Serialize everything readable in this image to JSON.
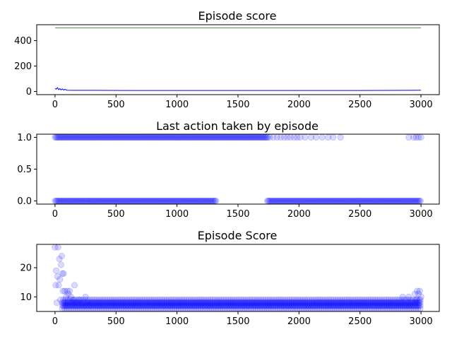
{
  "chart_data": [
    {
      "type": "line",
      "title": "Episode score",
      "xlim": [
        -150,
        3150
      ],
      "ylim": [
        -25,
        525
      ],
      "xticks": [
        0,
        500,
        1000,
        1500,
        2000,
        2500,
        3000
      ],
      "yticks": [
        0,
        200,
        400
      ],
      "series": [
        {
          "color": "#0000ff",
          "points": [
            [
              0,
              25
            ],
            [
              10,
              18
            ],
            [
              20,
              30
            ],
            [
              30,
              14
            ],
            [
              40,
              22
            ],
            [
              50,
              12
            ],
            [
              60,
              20
            ],
            [
              70,
              11
            ],
            [
              80,
              16
            ],
            [
              100,
              10
            ],
            [
              150,
              9
            ],
            [
              300,
              9
            ],
            [
              600,
              8
            ],
            [
              1000,
              8
            ],
            [
              1500,
              8
            ],
            [
              2000,
              8
            ],
            [
              2500,
              8
            ],
            [
              2900,
              9
            ],
            [
              3000,
              10
            ]
          ]
        },
        {
          "color": "#008000",
          "points": [
            [
              0,
              500
            ],
            [
              3000,
              500
            ]
          ]
        }
      ]
    },
    {
      "type": "scatter",
      "title": "Last action taken by episode",
      "xlim": [
        -150,
        3150
      ],
      "ylim": [
        -0.05,
        1.05
      ],
      "xticks": [
        0,
        500,
        1000,
        1500,
        2000,
        2500,
        3000
      ],
      "yticks": [
        0.0,
        0.5,
        1.0
      ],
      "ytick_labels": [
        "0.0",
        "0.5",
        "1.0"
      ],
      "color": "#0000ff",
      "alpha": 0.15,
      "series": [
        {
          "y": 1,
          "ranges": [
            [
              0,
              1750
            ]
          ],
          "step": 8,
          "extra": [
            1760,
            1790,
            1820,
            1850,
            1880,
            1905,
            1930,
            1960,
            1985,
            2010,
            2050,
            2100,
            2140,
            2190,
            2240,
            2280,
            2340,
            2900,
            2940,
            2960,
            2980,
            3000
          ]
        },
        {
          "y": 0,
          "ranges": [
            [
              0,
              1320
            ],
            [
              1740,
              3000
            ]
          ],
          "step": 8,
          "extra": []
        }
      ]
    },
    {
      "type": "scatter",
      "title": "Episode Score",
      "xlim": [
        -150,
        3150
      ],
      "ylim": [
        5,
        28
      ],
      "xticks": [
        0,
        500,
        1000,
        1500,
        2000,
        2500,
        3000
      ],
      "yticks": [
        10,
        20
      ],
      "color": "#0000ff",
      "alpha": 0.15,
      "early_points": [
        [
          0,
          27
        ],
        [
          5,
          14
        ],
        [
          10,
          19
        ],
        [
          15,
          8
        ],
        [
          20,
          17
        ],
        [
          25,
          27
        ],
        [
          30,
          14
        ],
        [
          35,
          23
        ],
        [
          40,
          16
        ],
        [
          45,
          9
        ],
        [
          50,
          21
        ],
        [
          55,
          24
        ],
        [
          60,
          18
        ],
        [
          65,
          12
        ],
        [
          70,
          18
        ],
        [
          80,
          12
        ],
        [
          90,
          10
        ],
        [
          100,
          12
        ],
        [
          110,
          11
        ],
        [
          120,
          12
        ],
        [
          130,
          10
        ],
        [
          150,
          9
        ],
        [
          160,
          14
        ],
        [
          200,
          9
        ],
        [
          250,
          10
        ]
      ],
      "band": {
        "x_from": 60,
        "x_to": 3000,
        "y_values": [
          6,
          7,
          8,
          9
        ],
        "step": 9
      },
      "end_points": [
        [
          2850,
          10
        ],
        [
          2900,
          10
        ],
        [
          2950,
          11
        ],
        [
          2970,
          12
        ],
        [
          2980,
          11
        ],
        [
          2990,
          12
        ],
        [
          3000,
          10
        ],
        [
          2995,
          9
        ],
        [
          2960,
          9
        ]
      ]
    }
  ]
}
